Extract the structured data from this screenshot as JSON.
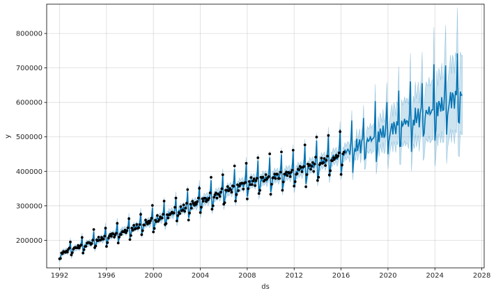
{
  "chart_data": {
    "type": "line",
    "title": "",
    "xlabel": "ds",
    "ylabel": "y",
    "xlim": [
      1990.9,
      2028.2
    ],
    "ylim": [
      120000,
      885000
    ],
    "x_ticks": [
      1992,
      1996,
      2000,
      2004,
      2008,
      2012,
      2016,
      2020,
      2024,
      2028
    ],
    "x_tick_labels": [
      "1992",
      "1996",
      "2000",
      "2004",
      "2008",
      "2012",
      "2016",
      "2020",
      "2024",
      "2028"
    ],
    "y_ticks": [
      200000,
      300000,
      400000,
      500000,
      600000,
      700000,
      800000
    ],
    "y_tick_labels": [
      "200000",
      "300000",
      "400000",
      "500000",
      "600000",
      "700000",
      "800000"
    ],
    "grid": true,
    "legend": "none",
    "observed_range": [
      1992.0,
      2016.33
    ],
    "forecast_range": [
      1992.0,
      2026.33
    ],
    "trend_points": [
      {
        "x": 1992.0,
        "y": 160000
      },
      {
        "x": 2000.0,
        "y": 255000
      },
      {
        "x": 2008.0,
        "y": 365000
      },
      {
        "x": 2012.0,
        "y": 395000
      },
      {
        "x": 2016.0,
        "y": 445000
      },
      {
        "x": 2020.0,
        "y": 515000
      },
      {
        "x": 2024.0,
        "y": 575000
      },
      {
        "x": 2026.33,
        "y": 620000
      }
    ],
    "series": [
      {
        "role": "observed",
        "marker": "dot",
        "color": "#000000"
      },
      {
        "role": "forecast",
        "style": "line",
        "color": "#0072B2"
      },
      {
        "role": "uncertainty-interval",
        "style": "band",
        "color": "#0072B2"
      }
    ]
  }
}
